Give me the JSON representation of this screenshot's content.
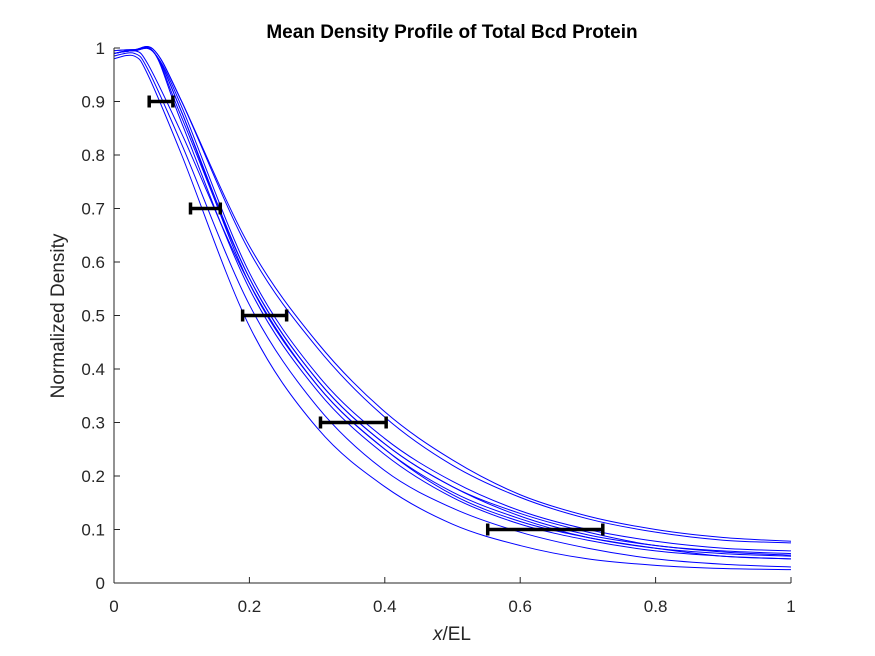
{
  "chart_data": {
    "type": "line",
    "title": "Mean Density Profile of Total Bcd Protein",
    "xlabel_italic": "x",
    "xlabel_rest": "/EL",
    "ylabel": "Normalized Density",
    "xlim": [
      0,
      1
    ],
    "ylim": [
      0,
      1
    ],
    "xticks": [
      "0",
      "0.2",
      "0.4",
      "0.6",
      "0.8",
      "1"
    ],
    "yticks": [
      "0",
      "0.1",
      "0.2",
      "0.3",
      "0.4",
      "0.5",
      "0.6",
      "0.7",
      "0.8",
      "0.9",
      "1"
    ],
    "grid": false,
    "line_color": "#0000ff",
    "errorbar_color": "#000000",
    "series": [
      {
        "x": [
          0,
          0.03,
          0.05,
          0.1,
          0.2,
          0.3,
          0.4,
          0.5,
          0.6,
          0.7,
          0.8,
          0.9,
          1.0
        ],
        "y": [
          0.99,
          0.995,
          0.97,
          0.84,
          0.56,
          0.37,
          0.25,
          0.165,
          0.115,
          0.085,
          0.065,
          0.05,
          0.045
        ]
      },
      {
        "x": [
          0,
          0.03,
          0.05,
          0.1,
          0.2,
          0.3,
          0.4,
          0.5,
          0.6,
          0.7,
          0.8,
          0.9,
          1.0
        ],
        "y": [
          0.985,
          0.99,
          0.96,
          0.82,
          0.52,
          0.33,
          0.21,
          0.14,
          0.095,
          0.065,
          0.045,
          0.035,
          0.03
        ]
      },
      {
        "x": [
          0,
          0.03,
          0.05,
          0.1,
          0.2,
          0.3,
          0.4,
          0.5,
          0.6,
          0.7,
          0.8,
          0.9,
          1.0
        ],
        "y": [
          0.98,
          0.985,
          0.95,
          0.8,
          0.48,
          0.29,
          0.18,
          0.11,
          0.07,
          0.045,
          0.033,
          0.027,
          0.025
        ]
      },
      {
        "x": [
          0,
          0.03,
          0.06,
          0.1,
          0.2,
          0.3,
          0.4,
          0.5,
          0.6,
          0.7,
          0.8,
          0.9,
          1.0
        ],
        "y": [
          0.99,
          0.995,
          0.99,
          0.88,
          0.56,
          0.37,
          0.25,
          0.17,
          0.12,
          0.085,
          0.065,
          0.055,
          0.05
        ]
      },
      {
        "x": [
          0,
          0.03,
          0.06,
          0.1,
          0.2,
          0.3,
          0.4,
          0.5,
          0.6,
          0.7,
          0.8,
          0.9,
          1.0
        ],
        "y": [
          0.99,
          0.995,
          0.99,
          0.88,
          0.57,
          0.38,
          0.26,
          0.18,
          0.13,
          0.095,
          0.07,
          0.06,
          0.055
        ]
      },
      {
        "x": [
          0,
          0.03,
          0.06,
          0.1,
          0.2,
          0.3,
          0.4,
          0.5,
          0.6,
          0.7,
          0.8,
          0.9,
          1.0
        ],
        "y": [
          0.995,
          0.997,
          0.995,
          0.9,
          0.62,
          0.44,
          0.31,
          0.22,
          0.16,
          0.12,
          0.095,
          0.08,
          0.075
        ]
      },
      {
        "x": [
          0,
          0.03,
          0.06,
          0.1,
          0.2,
          0.3,
          0.4,
          0.5,
          0.6,
          0.7,
          0.8,
          0.9,
          1.0
        ],
        "y": [
          0.995,
          0.997,
          0.995,
          0.9,
          0.63,
          0.45,
          0.32,
          0.23,
          0.165,
          0.125,
          0.1,
          0.085,
          0.078
        ]
      },
      {
        "x": [
          0,
          0.03,
          0.06,
          0.1,
          0.2,
          0.3,
          0.4,
          0.5,
          0.6,
          0.7,
          0.8,
          0.9,
          1.0
        ],
        "y": [
          0.99,
          0.995,
          0.99,
          0.86,
          0.55,
          0.36,
          0.24,
          0.16,
          0.11,
          0.08,
          0.06,
          0.05,
          0.045
        ]
      },
      {
        "x": [
          0,
          0.03,
          0.06,
          0.1,
          0.2,
          0.3,
          0.4,
          0.5,
          0.6,
          0.7,
          0.8,
          0.9,
          1.0
        ],
        "y": [
          0.99,
          0.995,
          0.99,
          0.87,
          0.57,
          0.38,
          0.26,
          0.18,
          0.125,
          0.09,
          0.07,
          0.058,
          0.052
        ]
      },
      {
        "x": [
          0,
          0.03,
          0.06,
          0.1,
          0.2,
          0.3,
          0.4,
          0.5,
          0.6,
          0.7,
          0.8,
          0.9,
          1.0
        ],
        "y": [
          0.99,
          0.995,
          0.99,
          0.89,
          0.58,
          0.39,
          0.27,
          0.19,
          0.135,
          0.1,
          0.078,
          0.065,
          0.06
        ]
      }
    ],
    "errorbars": [
      {
        "y": 0.9,
        "xmin": 0.052,
        "xmax": 0.087
      },
      {
        "y": 0.7,
        "xmin": 0.113,
        "xmax": 0.157
      },
      {
        "y": 0.5,
        "xmin": 0.19,
        "xmax": 0.255
      },
      {
        "y": 0.3,
        "xmin": 0.305,
        "xmax": 0.402
      },
      {
        "y": 0.1,
        "xmin": 0.552,
        "xmax": 0.722
      }
    ]
  }
}
